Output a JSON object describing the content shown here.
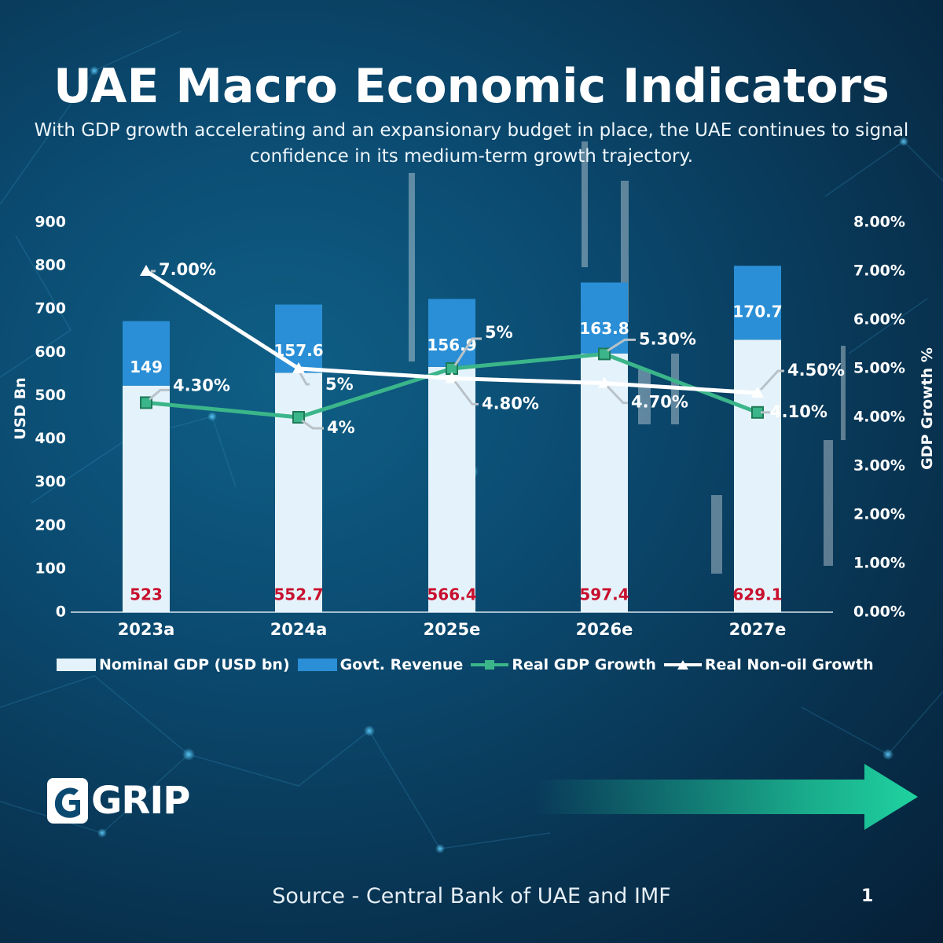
{
  "header": {
    "title": "UAE Macro Economic Indicators",
    "subtitle": "With GDP growth accelerating and an expansionary budget in place, the UAE continues to signal confidence in its medium-term growth trajectory."
  },
  "chart_data": {
    "type": "bar",
    "categories": [
      "2023a",
      "2024a",
      "2025e",
      "2026e",
      "2027e"
    ],
    "stacked": true,
    "ylabel": "USD Bn",
    "ylabel_right": "GDP Growth %",
    "ylim": [
      0,
      900
    ],
    "ylim_right": [
      0,
      8
    ],
    "yticks": [
      "0",
      "100",
      "200",
      "300",
      "400",
      "500",
      "600",
      "700",
      "800",
      "900"
    ],
    "yticks_right": [
      "0.00%",
      "1.00%",
      "2.00%",
      "3.00%",
      "4.00%",
      "5.00%",
      "6.00%",
      "7.00%",
      "8.00%"
    ],
    "series": [
      {
        "name": "Nominal GDP (USD bn)",
        "kind": "bar",
        "axis": "left",
        "color": "#e4f3fb",
        "values": [
          523,
          552.7,
          566.4,
          597.4,
          629.1
        ],
        "labels": [
          "523",
          "552.7",
          "566.4",
          "597.4",
          "629.1"
        ]
      },
      {
        "name": "Govt. Revenue",
        "kind": "bar",
        "axis": "left",
        "color": "#2a8fd6",
        "values": [
          149,
          157.6,
          156.9,
          163.8,
          170.7
        ],
        "labels": [
          "149",
          "157.6",
          "156.9",
          "163.8",
          "170.7"
        ]
      },
      {
        "name": "Real GDP Growth",
        "kind": "line",
        "axis": "right",
        "color": "#3bb58a",
        "values": [
          4.3,
          4.0,
          5.0,
          5.3,
          4.1
        ],
        "labels": [
          "4.30%",
          "4%",
          "5%",
          "5.30%",
          "4.10%"
        ]
      },
      {
        "name": "Real Non-oil Growth",
        "kind": "line",
        "axis": "right",
        "color": "#ffffff",
        "values": [
          7.0,
          5.0,
          4.8,
          4.7,
          4.5
        ],
        "labels": [
          "7.00%",
          "5%",
          "4.80%",
          "4.70%",
          "4.50%"
        ]
      }
    ],
    "legend_position": "bottom"
  },
  "branding": {
    "logo_text": "GRIP",
    "logo_icon": "grip-logo-icon"
  },
  "footer": {
    "source": "Source - Central Bank of UAE and IMF",
    "page": "1"
  },
  "colors": {
    "background": "#0b4a70",
    "gdp_bar": "#e4f3fb",
    "revenue_bar": "#2a8fd6",
    "real_gdp_line": "#3bb58a",
    "nonoil_line": "#ffffff",
    "gdp_label": "#c8102e",
    "arrow": "#1fd3a0"
  }
}
